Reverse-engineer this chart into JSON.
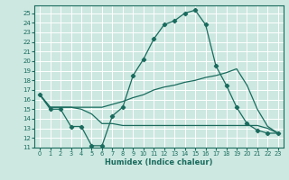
{
  "xlabel": "Humidex (Indice chaleur)",
  "bg_color": "#cce8e0",
  "grid_color": "#ffffff",
  "line_color": "#1a6b5e",
  "xlim": [
    -0.5,
    23.5
  ],
  "ylim": [
    11,
    25.8
  ],
  "xticks": [
    0,
    1,
    2,
    3,
    4,
    5,
    6,
    7,
    8,
    9,
    10,
    11,
    12,
    13,
    14,
    15,
    16,
    17,
    18,
    19,
    20,
    21,
    22,
    23
  ],
  "yticks": [
    11,
    12,
    13,
    14,
    15,
    16,
    17,
    18,
    19,
    20,
    21,
    22,
    23,
    24,
    25
  ],
  "line1_x": [
    0,
    1,
    2,
    3,
    4,
    5,
    6,
    7,
    8,
    9,
    10,
    11,
    12,
    13,
    14,
    15,
    16,
    17,
    18,
    19,
    20,
    21,
    22,
    23
  ],
  "line1_y": [
    16.5,
    15.0,
    15.0,
    13.2,
    13.2,
    11.2,
    11.2,
    14.3,
    15.2,
    18.5,
    20.2,
    22.3,
    23.8,
    24.2,
    25.0,
    25.3,
    23.8,
    19.5,
    17.5,
    15.2,
    13.5,
    12.8,
    12.5,
    12.5
  ],
  "line2_x": [
    0,
    1,
    2,
    3,
    4,
    5,
    6,
    7,
    8,
    9,
    10,
    11,
    12,
    13,
    14,
    15,
    16,
    17,
    18,
    19,
    20,
    21,
    22,
    23
  ],
  "line2_y": [
    16.5,
    15.2,
    15.2,
    15.2,
    15.2,
    15.2,
    15.2,
    15.5,
    15.8,
    16.2,
    16.5,
    17.0,
    17.3,
    17.5,
    17.8,
    18.0,
    18.3,
    18.5,
    18.8,
    19.2,
    17.5,
    15.0,
    13.2,
    12.5
  ],
  "line3_x": [
    0,
    1,
    2,
    3,
    4,
    5,
    6,
    7,
    8,
    9,
    10,
    11,
    12,
    13,
    14,
    15,
    16,
    17,
    18,
    19,
    20,
    21,
    22,
    23
  ],
  "line3_y": [
    16.5,
    15.2,
    15.2,
    15.2,
    15.0,
    14.5,
    13.5,
    13.5,
    13.3,
    13.3,
    13.3,
    13.3,
    13.3,
    13.3,
    13.3,
    13.3,
    13.3,
    13.3,
    13.3,
    13.3,
    13.3,
    13.3,
    13.0,
    12.5
  ]
}
